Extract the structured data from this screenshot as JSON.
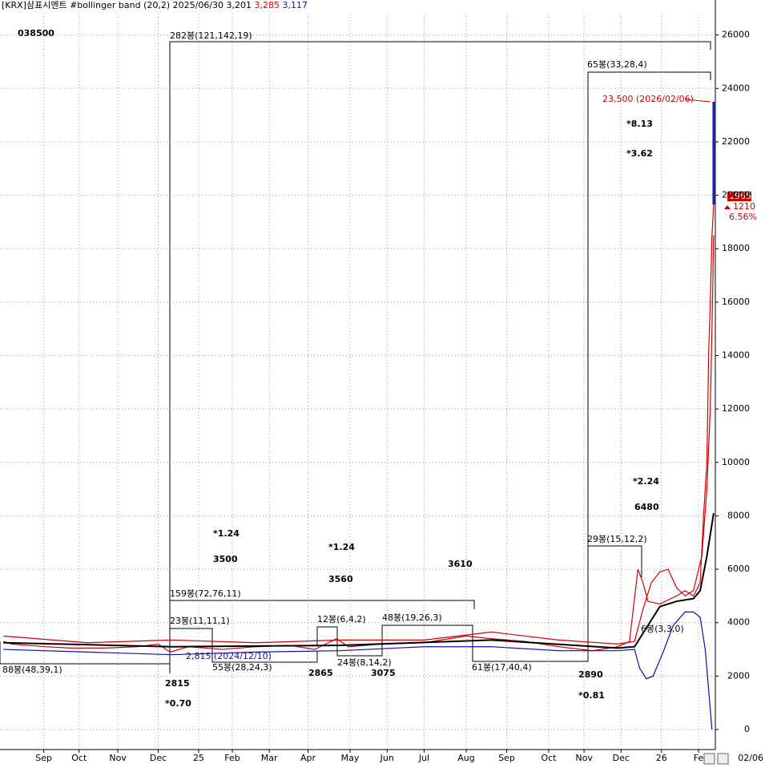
{
  "chart_data": {
    "type": "line",
    "title": "[KRX]삼표시멘트 #bollinger band  (20,2) 2025/06/30 3,201",
    "high_label": "3,285",
    "low_label": "3,117",
    "code": "038500",
    "xlim": [
      -2,
      423
    ],
    "ylim": [
      -750,
      26800
    ],
    "grid": true,
    "xticks": [
      {
        "value": 24,
        "label": "Sep"
      },
      {
        "value": 45,
        "label": "Oct"
      },
      {
        "value": 68,
        "label": "Nov"
      },
      {
        "value": 92,
        "label": "Dec"
      },
      {
        "value": 116,
        "label": "25"
      },
      {
        "value": 136,
        "label": "Feb"
      },
      {
        "value": 158,
        "label": "Mar"
      },
      {
        "value": 181,
        "label": "Apr"
      },
      {
        "value": 206,
        "label": "May"
      },
      {
        "value": 228,
        "label": "Jun"
      },
      {
        "value": 250,
        "label": "Jul"
      },
      {
        "value": 275,
        "label": "Aug"
      },
      {
        "value": 299,
        "label": "Sep"
      },
      {
        "value": 324,
        "label": "Oct"
      },
      {
        "value": 345,
        "label": "Nov"
      },
      {
        "value": 367,
        "label": "Dec"
      },
      {
        "value": 391,
        "label": "26"
      },
      {
        "value": 413,
        "label": "Fe"
      }
    ],
    "yticks": [
      0,
      2000,
      4000,
      6000,
      8000,
      10000,
      12000,
      14000,
      16000,
      18000,
      20000,
      22000,
      24000,
      26000
    ],
    "series": [
      {
        "color": "#d00000",
        "x": [
          0,
          5,
          15,
          25,
          40,
          60,
          80,
          92,
          99,
          110,
          130,
          150,
          170,
          185,
          198,
          205,
          225,
          250,
          275,
          290,
          310,
          330,
          350,
          365,
          372,
          377,
          380,
          383,
          390,
          400,
          405,
          410,
          414,
          416,
          418,
          419,
          420,
          421,
          422
        ],
        "values": [
          3300,
          3200,
          3150,
          3100,
          3050,
          3050,
          3100,
          3200,
          2900,
          3100,
          3000,
          3100,
          3150,
          3000,
          3400,
          3100,
          3200,
          3250,
          3500,
          3400,
          3300,
          3100,
          2950,
          3100,
          3300,
          6000,
          5500,
          4800,
          4700,
          5000,
          5200,
          5000,
          5500,
          8000,
          10000,
          14000,
          16000,
          18500,
          19650
        ]
      },
      {
        "color": "#2020c0",
        "x": [
          422,
          422
        ],
        "values": [
          19650,
          23500
        ]
      },
      {
        "color": "#d00000",
        "x": [
          0,
          50,
          100,
          150,
          200,
          250,
          290,
          330,
          365,
          375,
          380,
          385,
          390,
          395,
          400,
          405,
          410,
          415,
          418,
          420,
          421,
          422
        ],
        "values": [
          3500,
          3250,
          3350,
          3250,
          3350,
          3350,
          3650,
          3350,
          3200,
          3300,
          4500,
          5500,
          5900,
          6000,
          5300,
          5000,
          5200,
          6500,
          9000,
          12000,
          15000,
          18500
        ]
      },
      {
        "color": "#1010a0",
        "x": [
          0,
          50,
          100,
          150,
          200,
          250,
          290,
          330,
          365,
          375,
          378,
          382,
          386,
          392,
          398,
          405,
          410,
          414,
          417,
          419,
          421
        ],
        "values": [
          3000,
          2900,
          2800,
          2900,
          2950,
          3100,
          3100,
          2950,
          2950,
          3000,
          2300,
          1900,
          2000,
          2900,
          3900,
          4400,
          4400,
          4200,
          3000,
          1500,
          0
        ]
      },
      {
        "color": "#000000",
        "x": [
          0,
          100,
          200,
          290,
          365,
          375,
          390,
          400,
          410,
          414,
          418,
          422
        ],
        "values": [
          3250,
          3100,
          3150,
          3350,
          3050,
          3100,
          4600,
          4800,
          4900,
          5200,
          6500,
          8100
        ]
      }
    ],
    "annotations": [
      "282봉(121,142,19)",
      "65봉(33,28,4)",
      "23,500 (2026/02/06)",
      "*8.13",
      "*3.62",
      "*2.24",
      "6480",
      "29봉(15,12,2)",
      "*1.24",
      "3500",
      "*1.24",
      "3560",
      "3610",
      "159봉(72,76,11)",
      "23봉(11,11,1)",
      "12봉(6,4,2)",
      "48봉(19,26,3)",
      "6봉(3,3,0)",
      "2,815 (2024/12/10)",
      "88봉(48,39,1)",
      "55봉(28,24,3)",
      "24봉(8,14,2)",
      "3075",
      "61봉(17,40,4)",
      "2865",
      "2890",
      "2815",
      "*0.70",
      "*0.81"
    ],
    "price_box": {
      "price": "19650",
      "change": "1210",
      "pct": "6.56%"
    },
    "date_label": "02/06"
  }
}
